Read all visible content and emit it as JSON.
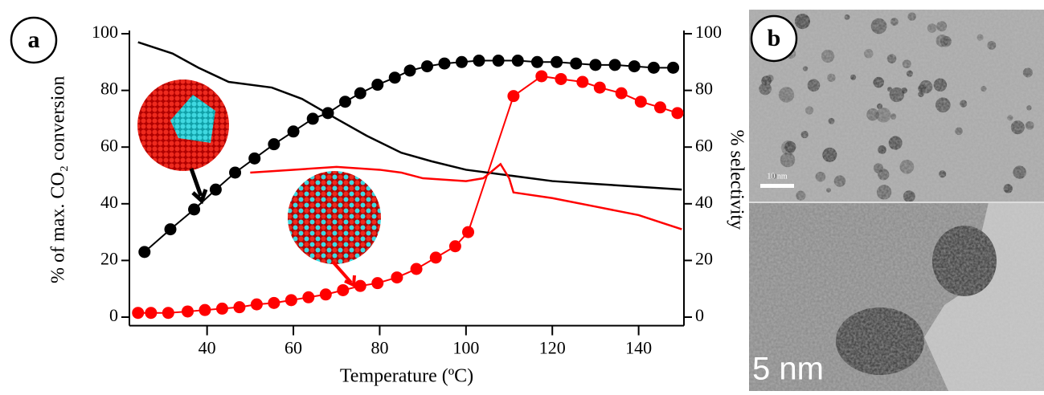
{
  "chart_data": {
    "type": "line",
    "xlabel": "Temperature (ºC)",
    "ylabel": "% of max. CO₂ conversion",
    "y2label": "% selectivity",
    "xlim": [
      22,
      150.5
    ],
    "xticks": [
      40,
      60,
      80,
      100,
      120,
      140
    ],
    "ylim": [
      -3,
      100
    ],
    "yticks": [
      0,
      20,
      40,
      60,
      80,
      100
    ],
    "y2lim": [
      -3,
      100
    ],
    "y2ticks": [
      0,
      20,
      40,
      60,
      80,
      100
    ],
    "series": [
      {
        "color": "#000000",
        "markers": true,
        "axis": "y",
        "x": [
          25.5,
          31.5,
          37,
          42,
          46.5,
          51,
          55.5,
          60,
          64.5,
          68,
          72,
          75.5,
          79.5,
          83.5,
          87,
          91,
          95,
          99,
          103,
          107.5,
          112,
          116.5,
          121,
          125.5,
          130,
          134.5,
          139,
          143.5,
          148
        ],
        "values": [
          23,
          31,
          38,
          45,
          51,
          56,
          61,
          65.5,
          70,
          72,
          76,
          79,
          82,
          84.5,
          87,
          88.5,
          89.5,
          90,
          90.5,
          90.5,
          90.5,
          90,
          90,
          89.5,
          89,
          89,
          88.5,
          88,
          88
        ]
      },
      {
        "color": "#ff0000",
        "markers": true,
        "axis": "y",
        "x": [
          24,
          27,
          31,
          35.5,
          39.5,
          43.5,
          47.5,
          51.5,
          55.5,
          59.5,
          63.5,
          67.5,
          71.5,
          75.5,
          79.5,
          84,
          88.5,
          93,
          97.5,
          100.5,
          111,
          117.5,
          122,
          127,
          131,
          136,
          140.5,
          145,
          149
        ],
        "values": [
          1.5,
          1.5,
          1.5,
          2,
          2.5,
          3,
          3.5,
          4.5,
          5,
          6,
          7,
          8,
          9.5,
          11,
          12,
          14,
          17,
          21,
          25,
          30,
          78,
          85,
          84,
          83,
          81,
          79,
          76,
          74,
          72
        ]
      },
      {
        "color": "#000000",
        "markers": false,
        "axis": "y2",
        "x": [
          24,
          32,
          38,
          45,
          55,
          62,
          70,
          77,
          85,
          92,
          100,
          110,
          120,
          130,
          140,
          150
        ],
        "values": [
          97,
          93,
          88,
          83,
          81,
          77,
          70,
          64,
          58,
          55,
          52,
          50,
          48,
          47,
          46,
          45
        ]
      },
      {
        "color": "#ff0000",
        "markers": false,
        "axis": "y2",
        "x": [
          50,
          60,
          70,
          80,
          85,
          90,
          100,
          104,
          108,
          110,
          111,
          120,
          130,
          140,
          146,
          150
        ],
        "values": [
          51,
          52,
          53,
          52,
          51,
          49,
          48,
          49,
          54,
          49,
          44,
          42,
          39,
          36,
          33,
          31
        ]
      }
    ]
  },
  "panel_labels": [
    "a",
    "b"
  ],
  "image": {
    "scale_bar_top": "10 nm",
    "scale_bar_bottom": "5 nm"
  }
}
